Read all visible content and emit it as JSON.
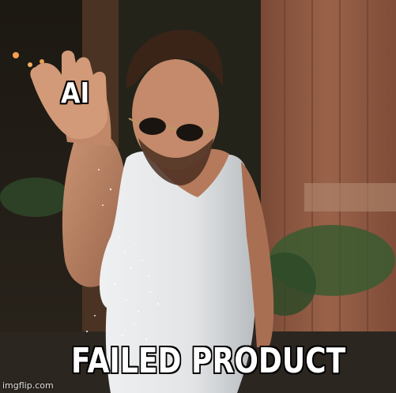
{
  "meme": {
    "top_text": "AI",
    "bottom_text": "FAILED PRODUCT",
    "watermark": "imgflip.com"
  }
}
